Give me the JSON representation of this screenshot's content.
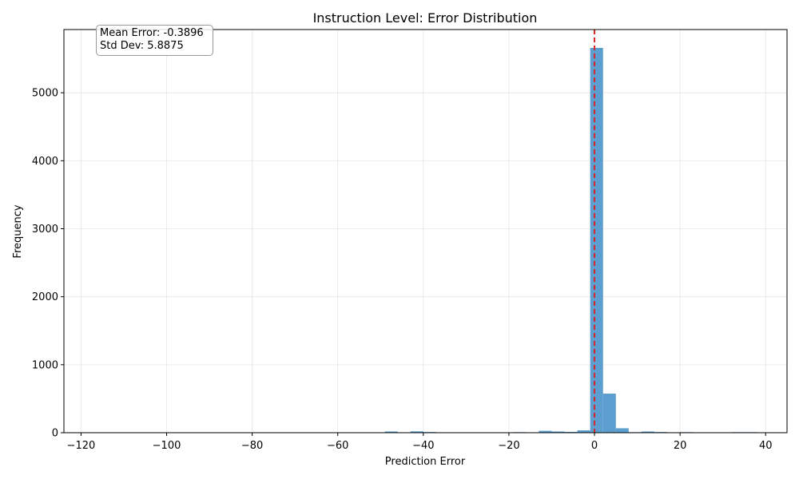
{
  "chart_data": {
    "type": "bar",
    "title": "Instruction Level: Error Distribution",
    "xlabel": "Prediction Error",
    "ylabel": "Frequency",
    "xlim": [
      -124,
      45
    ],
    "ylim": [
      0,
      5930
    ],
    "x_ticks": [
      -120,
      -100,
      -80,
      -60,
      -40,
      -20,
      0,
      20,
      40
    ],
    "y_ticks": [
      0,
      1000,
      2000,
      3000,
      4000,
      5000
    ],
    "grid": true,
    "bar_color": "#5b9ecf",
    "bins": [
      {
        "x0": -49,
        "x1": -46,
        "value": 18
      },
      {
        "x0": -46,
        "x1": -43,
        "value": 6
      },
      {
        "x0": -43,
        "x1": -40,
        "value": 20
      },
      {
        "x0": -40,
        "x1": -37,
        "value": 10
      },
      {
        "x0": -37,
        "x1": -34,
        "value": 6
      },
      {
        "x0": -34,
        "x1": -31,
        "value": 6
      },
      {
        "x0": -31,
        "x1": -28,
        "value": 5
      },
      {
        "x0": -28,
        "x1": -25,
        "value": 5
      },
      {
        "x0": -25,
        "x1": -22,
        "value": 2
      },
      {
        "x0": -22,
        "x1": -19,
        "value": 4
      },
      {
        "x0": -19,
        "x1": -16,
        "value": 8
      },
      {
        "x0": -16,
        "x1": -13,
        "value": 5
      },
      {
        "x0": -13,
        "x1": -10,
        "value": 28
      },
      {
        "x0": -10,
        "x1": -7,
        "value": 18
      },
      {
        "x0": -7,
        "x1": -4,
        "value": 12
      },
      {
        "x0": -4,
        "x1": -1,
        "value": 35
      },
      {
        "x0": -1,
        "x1": 2,
        "value": 5660
      },
      {
        "x0": 2,
        "x1": 5,
        "value": 575
      },
      {
        "x0": 5,
        "x1": 8,
        "value": 65
      },
      {
        "x0": 8,
        "x1": 11,
        "value": 8
      },
      {
        "x0": 11,
        "x1": 14,
        "value": 18
      },
      {
        "x0": 14,
        "x1": 17,
        "value": 10
      },
      {
        "x0": 17,
        "x1": 20,
        "value": 6
      },
      {
        "x0": 20,
        "x1": 23,
        "value": 8
      },
      {
        "x0": 23,
        "x1": 26,
        "value": 2
      },
      {
        "x0": 26,
        "x1": 29,
        "value": 2
      },
      {
        "x0": 29,
        "x1": 32,
        "value": 3
      },
      {
        "x0": 32,
        "x1": 35,
        "value": 8
      },
      {
        "x0": 35,
        "x1": 38,
        "value": 8
      }
    ],
    "reference_line": {
      "x": 0,
      "color": "#d62728",
      "style": "dashed"
    },
    "annotation": {
      "mean_label": "Mean Error: -0.3896",
      "std_label": "Std Dev: 5.8875"
    }
  }
}
